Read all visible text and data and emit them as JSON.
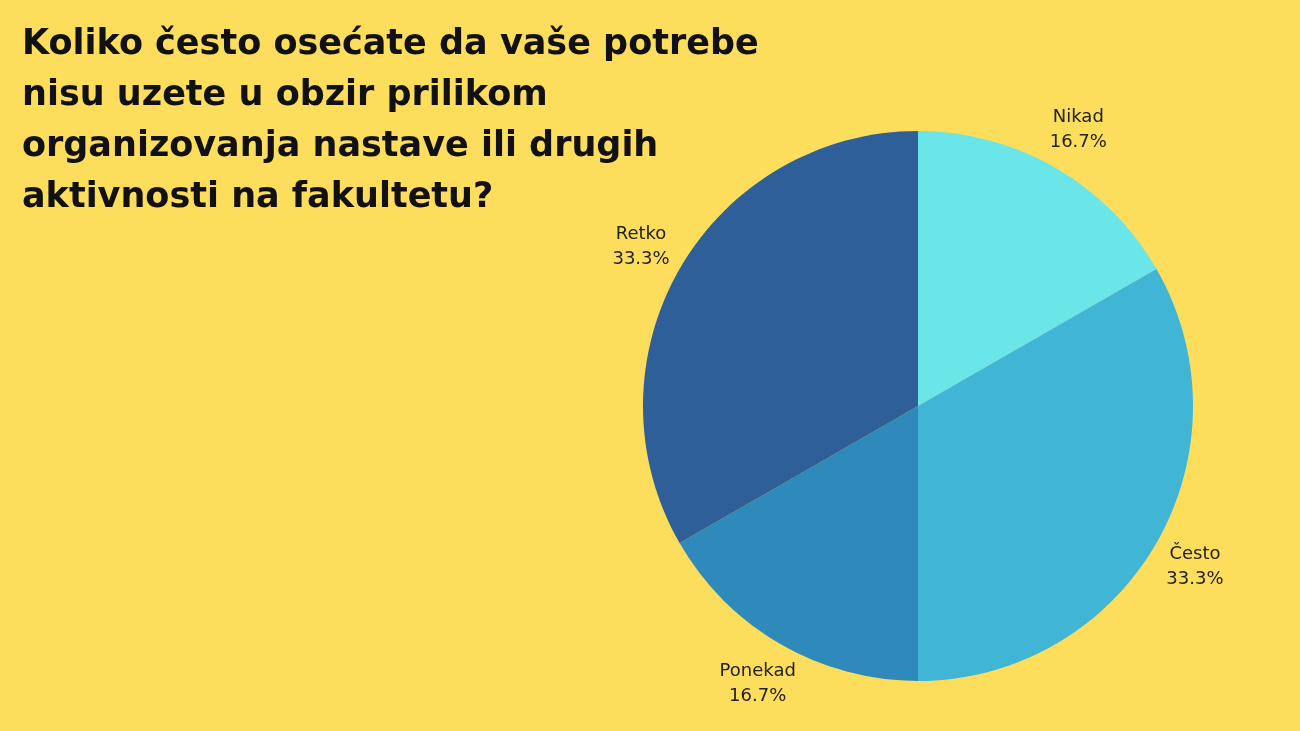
{
  "chart_data": {
    "type": "pie",
    "title": "Koliko često osećate da vaše potrebe nisu uzete u obzir prilikom organizovanja nastave ili drugih aktivnosti na fakultetu?",
    "categories": [
      "Nikad",
      "Često",
      "Ponekad",
      "Retko"
    ],
    "values": [
      16.7,
      33.3,
      16.7,
      33.3
    ],
    "colors": [
      "#6ae5e8",
      "#40b5d6",
      "#2e8aba",
      "#2f5f98"
    ],
    "value_labels": [
      "16.7%",
      "33.3%",
      "16.7%",
      "33.3%"
    ]
  }
}
